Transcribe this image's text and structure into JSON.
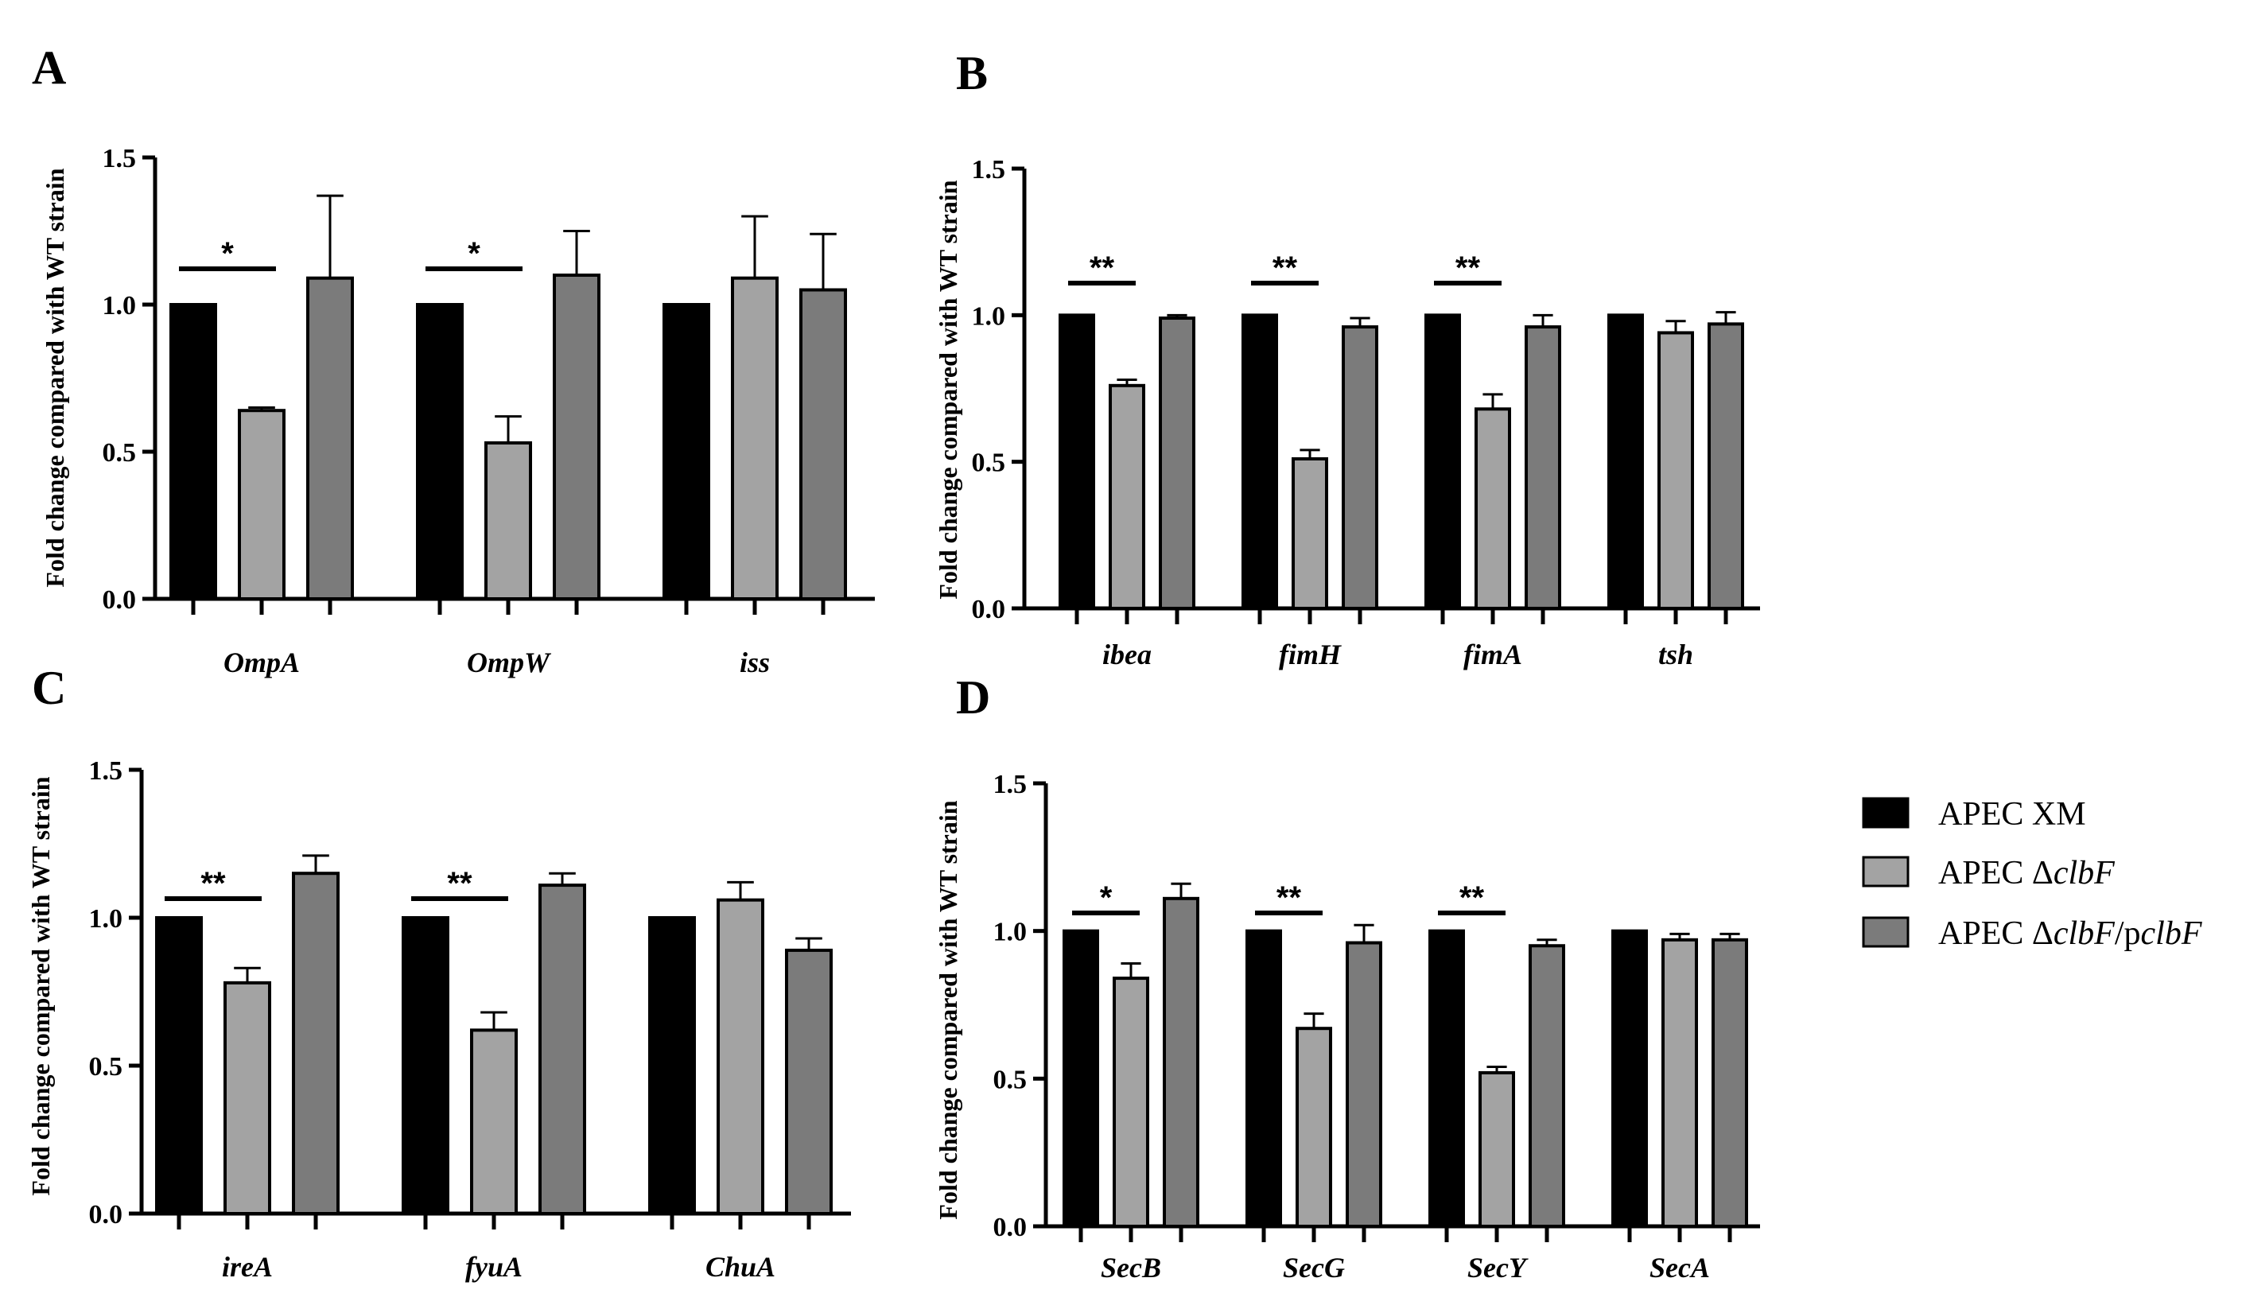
{
  "chart_data": [
    {
      "panel": "A",
      "type": "bar",
      "ylabel": "Fold change compared with WT strain",
      "ylim": [
        0,
        1.5
      ],
      "yticks": [
        "0.0",
        "0.5",
        "1.0",
        "1.5"
      ],
      "categories": [
        "OmpA",
        "OmpW",
        "iss"
      ],
      "series": [
        {
          "name": "APEC XM",
          "values": [
            1.0,
            1.0,
            1.0
          ],
          "errors": [
            0,
            0,
            0
          ]
        },
        {
          "name": "APEC ΔclbF",
          "values": [
            0.64,
            0.53,
            1.09
          ],
          "errors": [
            0.01,
            0.09,
            0.21
          ]
        },
        {
          "name": "APEC ΔclbF/pclbF",
          "values": [
            1.09,
            1.1,
            1.05
          ],
          "errors": [
            0.28,
            0.15,
            0.19
          ]
        }
      ],
      "significance": [
        "*",
        "*",
        ""
      ]
    },
    {
      "panel": "B",
      "type": "bar",
      "ylabel": "Fold change compared with WT strain",
      "ylim": [
        0,
        1.5
      ],
      "yticks": [
        "0.0",
        "0.5",
        "1.0",
        "1.5"
      ],
      "categories": [
        "ibea",
        "fimH",
        "fimA",
        "tsh"
      ],
      "series": [
        {
          "name": "APEC XM",
          "values": [
            1.0,
            1.0,
            1.0,
            1.0
          ],
          "errors": [
            0,
            0,
            0,
            0
          ]
        },
        {
          "name": "APEC ΔclbF",
          "values": [
            0.76,
            0.51,
            0.68,
            0.94
          ],
          "errors": [
            0.02,
            0.03,
            0.05,
            0.04
          ]
        },
        {
          "name": "APEC ΔclbF/pclbF",
          "values": [
            0.99,
            0.96,
            0.96,
            0.97
          ],
          "errors": [
            0.01,
            0.03,
            0.04,
            0.04
          ]
        }
      ],
      "significance": [
        "**",
        "**",
        "**",
        ""
      ]
    },
    {
      "panel": "C",
      "type": "bar",
      "ylabel": "Fold change compared with WT strain",
      "ylim": [
        0,
        1.5
      ],
      "yticks": [
        "0.0",
        "0.5",
        "1.0",
        "1.5"
      ],
      "categories": [
        "ireA",
        "fyuA",
        "ChuA"
      ],
      "series": [
        {
          "name": "APEC XM",
          "values": [
            1.0,
            1.0,
            1.0
          ],
          "errors": [
            0,
            0,
            0
          ]
        },
        {
          "name": "APEC ΔclbF",
          "values": [
            0.78,
            0.62,
            1.06
          ],
          "errors": [
            0.05,
            0.06,
            0.06
          ]
        },
        {
          "name": "APEC ΔclbF/pclbF",
          "values": [
            1.15,
            1.11,
            0.89
          ],
          "errors": [
            0.06,
            0.04,
            0.04
          ]
        }
      ],
      "significance": [
        "**",
        "**",
        ""
      ]
    },
    {
      "panel": "D",
      "type": "bar",
      "ylabel": "Fold change compared with WT strain",
      "ylim": [
        0,
        1.5
      ],
      "yticks": [
        "0.0",
        "0.5",
        "1.0",
        "1.5"
      ],
      "categories": [
        "SecB",
        "SecG",
        "SecY",
        "SecA"
      ],
      "series": [
        {
          "name": "APEC XM",
          "values": [
            1.0,
            1.0,
            1.0,
            1.0
          ],
          "errors": [
            0,
            0,
            0,
            0
          ]
        },
        {
          "name": "APEC ΔclbF",
          "values": [
            0.84,
            0.67,
            0.52,
            0.97
          ],
          "errors": [
            0.05,
            0.05,
            0.02,
            0.02
          ]
        },
        {
          "name": "APEC ΔclbF/pclbF",
          "values": [
            1.11,
            0.96,
            0.95,
            0.97
          ],
          "errors": [
            0.05,
            0.06,
            0.02,
            0.02
          ]
        }
      ],
      "significance": [
        "*",
        "**",
        "**",
        ""
      ]
    }
  ],
  "legend": {
    "items": [
      {
        "label_prefix": "APEC XM",
        "label_italic": "",
        "label_mid": "",
        "label_italic2": ""
      },
      {
        "label_prefix": "APEC Δ",
        "label_italic": "clbF",
        "label_mid": "",
        "label_italic2": ""
      },
      {
        "label_prefix": "APEC Δ",
        "label_italic": "clbF",
        "label_mid": "/p",
        "label_italic2": "clbF"
      }
    ]
  },
  "colors": {
    "series": [
      "#000000",
      "#a3a3a3",
      "#7b7b7b"
    ],
    "axis": "#000000"
  }
}
